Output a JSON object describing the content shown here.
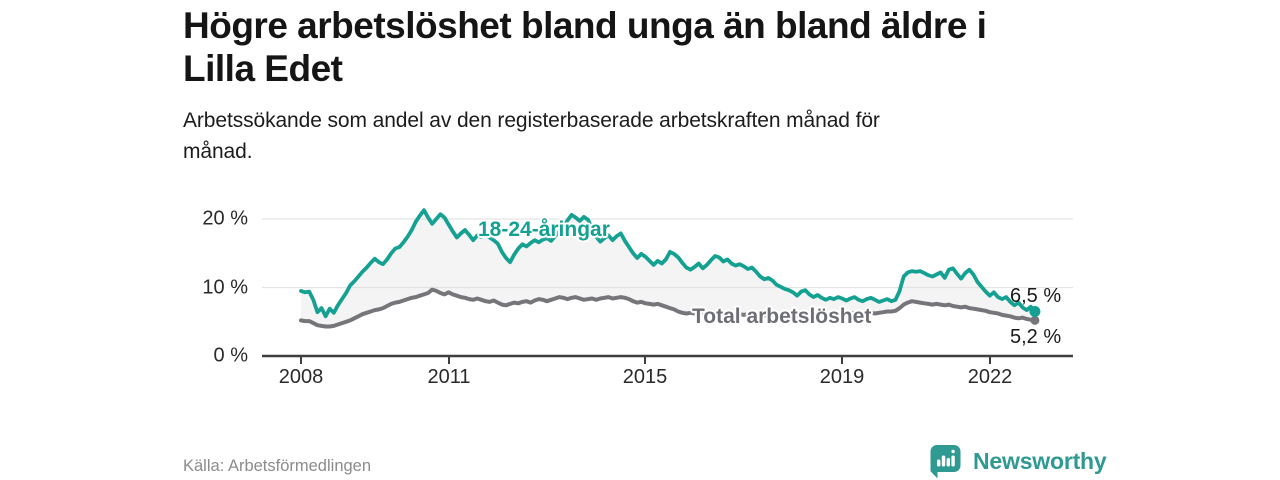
{
  "chart_data": {
    "type": "line",
    "title": "Högre arbetslöshet bland unga än bland äldre i Lilla Edet",
    "title_lines": [
      "Högre arbetslöshet bland unga än bland äldre i",
      "Lilla Edet"
    ],
    "subtitle": "Arbetssökande som andel av den registerbaserade arbetskraften månad för månad.",
    "subtitle_lines": [
      "Arbetssökande som andel av den registerbaserade arbetskraften månad för",
      "månad."
    ],
    "unit": "%",
    "frequency": "monthly",
    "x_start": "2008-01",
    "x_end": "2022-12",
    "x_ticks": [
      "2008",
      "2011",
      "2015",
      "2019",
      "2022"
    ],
    "y_ticks": [
      "0 %",
      "10 %",
      "20 %"
    ],
    "ylim": [
      0,
      22
    ],
    "grid": "horizontal",
    "legend": "inline-labels",
    "series": [
      {
        "name": "18-24-åringar",
        "color": "#14a192",
        "end_label": "6,5 %",
        "end_value": 6.5,
        "values": [
          9.5,
          9.3,
          9.4,
          8.2,
          6.4,
          7.0,
          5.8,
          6.9,
          6.3,
          7.4,
          8.3,
          9.2,
          10.3,
          10.9,
          11.6,
          12.3,
          12.9,
          13.6,
          14.2,
          13.7,
          13.4,
          14.1,
          15.0,
          15.7,
          15.9,
          16.6,
          17.4,
          18.4,
          19.6,
          20.5,
          21.3,
          20.2,
          19.3,
          20.0,
          20.7,
          20.2,
          19.2,
          18.2,
          17.3,
          17.9,
          18.4,
          17.7,
          16.9,
          17.6,
          17.4,
          17.8,
          17.3,
          16.9,
          16.4,
          15.2,
          14.3,
          13.7,
          14.8,
          15.7,
          16.3,
          16.0,
          16.5,
          16.9,
          16.6,
          17.0,
          17.2,
          16.8,
          17.5,
          18.2,
          19.0,
          19.8,
          20.6,
          20.2,
          19.7,
          20.3,
          19.9,
          18.6,
          17.4,
          16.7,
          17.2,
          17.6,
          16.9,
          17.5,
          17.9,
          16.8,
          15.9,
          15.0,
          14.3,
          14.9,
          14.5,
          13.9,
          13.3,
          13.9,
          13.5,
          14.1,
          15.2,
          14.9,
          14.4,
          13.6,
          12.9,
          12.6,
          13.0,
          13.5,
          12.8,
          13.3,
          14.0,
          14.6,
          14.4,
          13.8,
          14.1,
          13.5,
          13.2,
          13.4,
          13.1,
          12.7,
          12.9,
          12.3,
          11.6,
          11.2,
          11.4,
          11.0,
          10.4,
          10.1,
          9.8,
          9.6,
          9.3,
          8.8,
          9.4,
          9.6,
          9.0,
          8.6,
          8.9,
          8.5,
          8.2,
          8.5,
          8.3,
          8.6,
          8.4,
          8.1,
          8.4,
          8.6,
          8.2,
          8.0,
          8.3,
          8.5,
          8.2,
          7.9,
          8.1,
          8.3,
          8.0,
          8.2,
          9.5,
          11.6,
          12.2,
          12.4,
          12.3,
          12.4,
          12.1,
          11.8,
          11.6,
          11.9,
          12.2,
          11.4,
          12.6,
          12.8,
          12.0,
          11.3,
          12.1,
          12.6,
          11.9,
          10.8,
          10.1,
          9.4,
          8.8,
          9.3,
          8.6,
          8.3,
          8.6,
          7.9,
          7.4,
          7.8,
          7.1,
          6.7,
          7.2,
          6.5
        ]
      },
      {
        "name": "Total arbetslöshet",
        "color": "#76767a",
        "end_label": "5,2 %",
        "end_value": 5.2,
        "values": [
          5.2,
          5.1,
          5.1,
          4.8,
          4.5,
          4.4,
          4.3,
          4.3,
          4.4,
          4.6,
          4.8,
          5.0,
          5.2,
          5.5,
          5.8,
          6.1,
          6.3,
          6.5,
          6.7,
          6.8,
          7.0,
          7.3,
          7.6,
          7.8,
          7.9,
          8.1,
          8.3,
          8.5,
          8.6,
          8.8,
          9.0,
          9.2,
          9.7,
          9.5,
          9.2,
          9.0,
          9.3,
          9.0,
          8.8,
          8.6,
          8.5,
          8.3,
          8.2,
          8.4,
          8.2,
          8.0,
          7.9,
          8.1,
          7.8,
          7.5,
          7.4,
          7.6,
          7.8,
          7.7,
          7.9,
          8.0,
          7.8,
          8.1,
          8.3,
          8.2,
          8.0,
          8.2,
          8.4,
          8.6,
          8.5,
          8.3,
          8.5,
          8.6,
          8.4,
          8.2,
          8.3,
          8.4,
          8.2,
          8.4,
          8.5,
          8.6,
          8.4,
          8.5,
          8.6,
          8.5,
          8.3,
          8.0,
          7.8,
          7.9,
          7.7,
          7.6,
          7.5,
          7.6,
          7.4,
          7.2,
          7.0,
          6.8,
          6.5,
          6.3,
          6.2,
          6.3,
          6.2,
          6.3,
          6.4,
          6.3,
          6.2,
          6.3,
          6.2,
          6.1,
          6.2,
          6.1,
          6.0,
          6.1,
          6.0,
          6.1,
          6.0,
          5.9,
          5.8,
          5.9,
          5.8,
          5.9,
          5.8,
          5.9,
          6.0,
          5.9,
          5.8,
          5.9,
          6.0,
          5.9,
          5.8,
          5.9,
          6.0,
          6.1,
          6.0,
          6.1,
          6.2,
          6.1,
          6.2,
          6.1,
          6.2,
          6.3,
          6.2,
          6.3,
          6.4,
          6.3,
          6.2,
          6.3,
          6.4,
          6.5,
          6.5,
          6.6,
          7.0,
          7.5,
          7.8,
          8.0,
          7.9,
          7.8,
          7.7,
          7.6,
          7.5,
          7.6,
          7.5,
          7.4,
          7.5,
          7.3,
          7.2,
          7.1,
          7.2,
          7.0,
          6.9,
          6.8,
          6.7,
          6.6,
          6.4,
          6.3,
          6.2,
          6.0,
          5.9,
          5.8,
          5.6,
          5.5,
          5.6,
          5.4,
          5.3,
          5.2
        ]
      }
    ]
  },
  "footer": {
    "source": "Källa: Arbetsförmedlingen",
    "brand": "Newsworthy",
    "logo_icon": "bar-chart-speech-bubble"
  },
  "colors": {
    "youth_line": "#14a192",
    "total_line": "#76767a",
    "band_fill": "#f4f4f5",
    "gridline": "#e3e3e3",
    "axis": "#3f3f3f",
    "brand_teal": "#2f9a92"
  }
}
